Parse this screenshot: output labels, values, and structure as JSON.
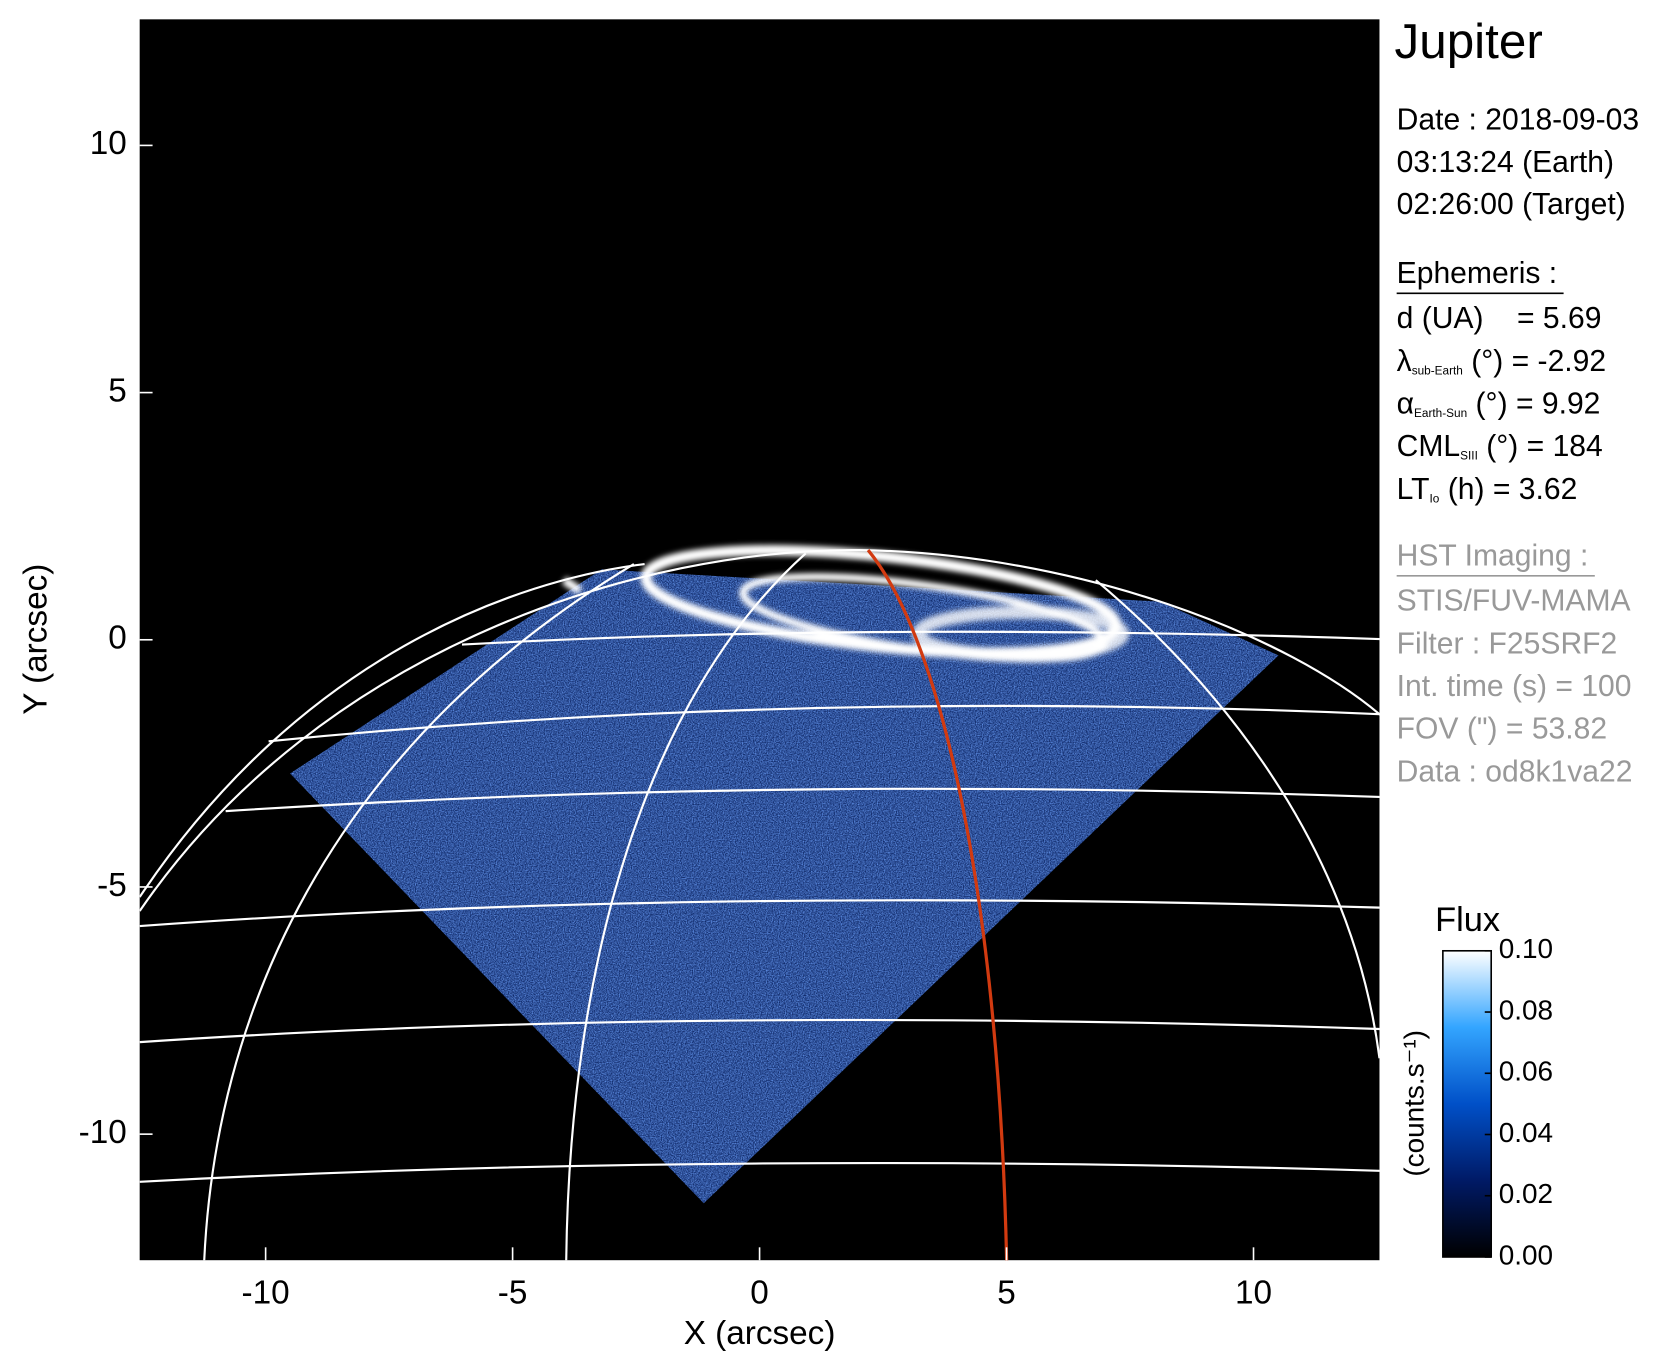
{
  "chart_data": {
    "type": "image",
    "title": "Jupiter",
    "xlabel": "X (arcsec)",
    "ylabel": "Y (arcsec)",
    "xlim": [
      -12.55,
      12.55
    ],
    "ylim": [
      -12.55,
      12.55
    ],
    "xticks": [
      -10,
      -5,
      0,
      5,
      10
    ],
    "yticks": [
      -10,
      -5,
      0,
      5,
      10
    ],
    "colorbar": {
      "label": "Flux",
      "units": "(counts.s⁻¹)",
      "lim": [
        0,
        0.1
      ],
      "ticks": [
        {
          "value": 0,
          "label": "0.00"
        },
        {
          "value": 0.02,
          "label": "0.02"
        },
        {
          "value": 0.04,
          "label": "0.04"
        },
        {
          "value": 0.06,
          "label": "0.06"
        },
        {
          "value": 0.08,
          "label": "0.08"
        },
        {
          "value": 0.1,
          "label": "0.10"
        }
      ],
      "colors": [
        "#000000",
        "#001a66",
        "#0050c8",
        "#33a5ff",
        "#ffffff"
      ]
    },
    "info": {
      "date": [
        "Date : 2018-09-03",
        "03:13:24 (Earth)",
        "02:26:00 (Target)"
      ],
      "ephemeris": {
        "heading": "Ephemeris :",
        "lines": [
          {
            "text": "d (UA)    = 5.69"
          },
          {
            "symbol": "λ",
            "sub": "sub-Earth",
            "rest": "(°) = -2.92"
          },
          {
            "symbol": "α",
            "sub": "Earth-Sun",
            "rest": "(°) = 9.92"
          },
          {
            "symbol": "CML",
            "sub": "SIII",
            "rest": "(°) = 184"
          },
          {
            "symbol": "LT",
            "sub": "Io",
            "rest": "(h) = 3.62"
          }
        ]
      },
      "imaging": {
        "heading": "HST Imaging :",
        "lines": [
          {
            "text": "STIS/FUV-MAMA"
          },
          {
            "text": "Filter : F25SRF2"
          },
          {
            "text": "Int. time (s) = 100"
          },
          {
            "text": "FOV (\") = 53.82"
          },
          {
            "text": "Data : od8k1va22"
          }
        ]
      }
    }
  }
}
